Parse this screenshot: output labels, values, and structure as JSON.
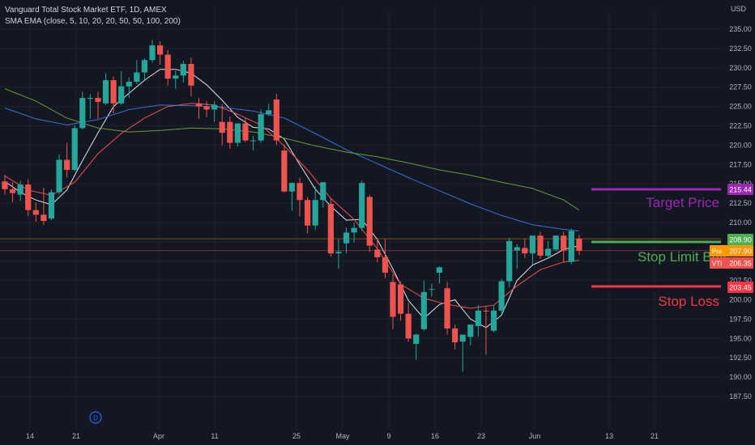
{
  "header": {
    "title": "Vanguard Total Stock Market ETF, 1D, AMEX",
    "indicator": "SMA EMA (close, 5, 10, 20, 20, 50, 50, 100, 200)",
    "currency": "USD"
  },
  "colors": {
    "background": "#131722",
    "up": "#26a69a",
    "down": "#ef5350",
    "grid": "#1e222d",
    "axis_text": "#b2b5be",
    "ma_white": "#e0e3eb",
    "ma_red": "#f04f4f",
    "ma_blue": "#3a6fd8",
    "ma_green": "#6b9a3a",
    "target": "#9c27b0",
    "stop_limit": "#4caf50",
    "stop_loss": "#f23645",
    "pre_tag": "#ff9800"
  },
  "annotations": {
    "target_label": "Target Price",
    "stop_limit_label": "Stop Limit Buy",
    "stop_loss_label": "Stop Loss",
    "target_price": "215.44",
    "stop_limit_price": "208.90",
    "pre_price": "207.90",
    "pre_tag": "Pre",
    "last_price": "206.35",
    "last_tag": "VTI",
    "stop_loss_price": "203.45",
    "event_marker": "D"
  },
  "chart_data": {
    "type": "candlestick",
    "title": "Vanguard Total Stock Market ETF, 1D, AMEX",
    "ylim": [
      186.5,
      237
    ],
    "y_ticks": [
      "235.00",
      "232.50",
      "230.00",
      "227.50",
      "225.00",
      "222.50",
      "220.00",
      "217.50",
      "215.00",
      "212.50",
      "210.00",
      "207.50",
      "205.00",
      "202.50",
      "200.00",
      "197.50",
      "195.00",
      "192.50",
      "190.00",
      "187.50"
    ],
    "x_ticks": [
      "14",
      "21",
      "Apr",
      "11",
      "25",
      "May",
      "9",
      "16",
      "23",
      "Jun",
      "13",
      "21"
    ],
    "candles": [
      {
        "o": 215.3,
        "h": 216.2,
        "l": 213.6,
        "c": 214.3
      },
      {
        "o": 214.3,
        "h": 215.2,
        "l": 212.6,
        "c": 213.8
      },
      {
        "o": 213.6,
        "h": 215.4,
        "l": 212.8,
        "c": 214.9
      },
      {
        "o": 214.9,
        "h": 215.6,
        "l": 210.8,
        "c": 211.6
      },
      {
        "o": 211.6,
        "h": 212.6,
        "l": 210.1,
        "c": 211.0
      },
      {
        "o": 211.0,
        "h": 214.5,
        "l": 209.7,
        "c": 210.2
      },
      {
        "o": 210.5,
        "h": 214.3,
        "l": 210.3,
        "c": 213.9
      },
      {
        "o": 213.9,
        "h": 218.8,
        "l": 213.6,
        "c": 218.1
      },
      {
        "o": 218.1,
        "h": 220.3,
        "l": 215.8,
        "c": 216.8
      },
      {
        "o": 216.8,
        "h": 222.6,
        "l": 216.6,
        "c": 222.2
      },
      {
        "o": 222.2,
        "h": 226.9,
        "l": 222.0,
        "c": 226.1
      },
      {
        "o": 226.1,
        "h": 226.6,
        "l": 223.4,
        "c": 226.1
      },
      {
        "o": 226.1,
        "h": 226.9,
        "l": 223.4,
        "c": 225.6
      },
      {
        "o": 225.4,
        "h": 229.3,
        "l": 225.2,
        "c": 228.4
      },
      {
        "o": 228.4,
        "h": 228.9,
        "l": 224.1,
        "c": 225.4
      },
      {
        "o": 225.4,
        "h": 229.6,
        "l": 225.2,
        "c": 227.6
      },
      {
        "o": 227.6,
        "h": 228.8,
        "l": 226.1,
        "c": 228.2
      },
      {
        "o": 228.2,
        "h": 231.0,
        "l": 227.9,
        "c": 229.4
      },
      {
        "o": 229.4,
        "h": 231.2,
        "l": 228.5,
        "c": 231.0
      },
      {
        "o": 231.0,
        "h": 233.6,
        "l": 230.7,
        "c": 232.9
      },
      {
        "o": 232.9,
        "h": 233.4,
        "l": 230.4,
        "c": 231.7
      },
      {
        "o": 231.7,
        "h": 232.3,
        "l": 227.7,
        "c": 228.6
      },
      {
        "o": 228.6,
        "h": 229.6,
        "l": 227.3,
        "c": 229.0
      },
      {
        "o": 229.0,
        "h": 230.9,
        "l": 228.1,
        "c": 230.5
      },
      {
        "o": 230.5,
        "h": 231.3,
        "l": 226.3,
        "c": 227.7
      },
      {
        "o": 225.4,
        "h": 226.1,
        "l": 223.4,
        "c": 225.0
      },
      {
        "o": 225.0,
        "h": 225.7,
        "l": 223.6,
        "c": 224.6
      },
      {
        "o": 224.6,
        "h": 225.7,
        "l": 223.0,
        "c": 225.2
      },
      {
        "o": 223.0,
        "h": 225.3,
        "l": 220.0,
        "c": 221.6
      },
      {
        "o": 223.0,
        "h": 223.7,
        "l": 219.5,
        "c": 220.3
      },
      {
        "o": 220.3,
        "h": 222.8,
        "l": 219.8,
        "c": 222.8
      },
      {
        "o": 222.8,
        "h": 223.5,
        "l": 220.4,
        "c": 220.6
      },
      {
        "o": 220.6,
        "h": 221.2,
        "l": 219.3,
        "c": 220.6
      },
      {
        "o": 220.6,
        "h": 224.6,
        "l": 220.3,
        "c": 224.0
      },
      {
        "o": 224.0,
        "h": 225.4,
        "l": 223.8,
        "c": 224.5
      },
      {
        "o": 225.9,
        "h": 226.6,
        "l": 220.0,
        "c": 220.6
      },
      {
        "o": 219.3,
        "h": 220.1,
        "l": 213.9,
        "c": 214.0
      },
      {
        "o": 214.0,
        "h": 215.2,
        "l": 211.5,
        "c": 215.1
      },
      {
        "o": 215.1,
        "h": 215.8,
        "l": 210.8,
        "c": 212.9
      },
      {
        "o": 212.9,
        "h": 213.3,
        "l": 208.6,
        "c": 209.6
      },
      {
        "o": 209.6,
        "h": 214.7,
        "l": 209.0,
        "c": 212.9
      },
      {
        "o": 212.9,
        "h": 215.2,
        "l": 211.9,
        "c": 215.2
      },
      {
        "o": 212.4,
        "h": 213.1,
        "l": 205.6,
        "c": 206.0
      },
      {
        "o": 206.0,
        "h": 207.8,
        "l": 204.0,
        "c": 206.2
      },
      {
        "o": 207.3,
        "h": 209.3,
        "l": 206.0,
        "c": 208.7
      },
      {
        "o": 208.7,
        "h": 210.0,
        "l": 207.4,
        "c": 209.3
      },
      {
        "o": 209.3,
        "h": 215.4,
        "l": 208.9,
        "c": 215.1
      },
      {
        "o": 213.3,
        "h": 213.6,
        "l": 206.2,
        "c": 207.0
      },
      {
        "o": 206.5,
        "h": 208.0,
        "l": 204.8,
        "c": 205.5
      },
      {
        "o": 205.5,
        "h": 207.9,
        "l": 202.8,
        "c": 203.5
      },
      {
        "o": 202.3,
        "h": 203.3,
        "l": 196.2,
        "c": 197.8
      },
      {
        "o": 202.0,
        "h": 202.4,
        "l": 197.3,
        "c": 198.2
      },
      {
        "o": 198.2,
        "h": 199.6,
        "l": 194.6,
        "c": 195.0
      },
      {
        "o": 194.3,
        "h": 195.6,
        "l": 192.2,
        "c": 195.5
      },
      {
        "o": 196.2,
        "h": 202.5,
        "l": 196.0,
        "c": 201.0
      },
      {
        "o": 201.4,
        "h": 202.1,
        "l": 200.4,
        "c": 201.4
      },
      {
        "o": 203.5,
        "h": 204.3,
        "l": 202.1,
        "c": 204.2
      },
      {
        "o": 201.5,
        "h": 202.3,
        "l": 195.5,
        "c": 196.3
      },
      {
        "o": 196.3,
        "h": 196.8,
        "l": 193.6,
        "c": 194.5
      },
      {
        "o": 194.6,
        "h": 195.4,
        "l": 190.7,
        "c": 195.5
      },
      {
        "o": 195.2,
        "h": 196.8,
        "l": 194.1,
        "c": 196.8
      },
      {
        "o": 196.6,
        "h": 199.3,
        "l": 195.2,
        "c": 198.6
      },
      {
        "o": 198.6,
        "h": 199.1,
        "l": 192.9,
        "c": 198.5
      },
      {
        "o": 196.0,
        "h": 199.3,
        "l": 195.8,
        "c": 198.6
      },
      {
        "o": 198.6,
        "h": 202.7,
        "l": 198.3,
        "c": 202.4
      },
      {
        "o": 202.4,
        "h": 208.0,
        "l": 201.6,
        "c": 207.6
      },
      {
        "o": 206.4,
        "h": 207.2,
        "l": 204.0,
        "c": 206.8
      },
      {
        "o": 206.7,
        "h": 207.9,
        "l": 205.4,
        "c": 206.0
      },
      {
        "o": 206.0,
        "h": 208.3,
        "l": 204.6,
        "c": 208.3
      },
      {
        "o": 208.3,
        "h": 208.8,
        "l": 205.3,
        "c": 205.7
      },
      {
        "o": 205.7,
        "h": 207.6,
        "l": 205.3,
        "c": 206.6
      },
      {
        "o": 206.5,
        "h": 208.3,
        "l": 206.3,
        "c": 208.3
      },
      {
        "o": 208.3,
        "h": 208.8,
        "l": 204.8,
        "c": 206.4
      },
      {
        "o": 204.9,
        "h": 209.2,
        "l": 204.6,
        "c": 208.9
      },
      {
        "o": 207.9,
        "h": 208.4,
        "l": 205.8,
        "c": 206.35
      }
    ],
    "ma_lines": [
      {
        "color_key": "ma_white",
        "pts": [
          [
            0,
            215.3
          ],
          [
            2,
            213.9
          ],
          [
            4,
            212.9
          ],
          [
            6,
            212.3
          ],
          [
            8,
            214.2
          ],
          [
            10,
            218.0
          ],
          [
            12,
            221.6
          ],
          [
            14,
            225.0
          ],
          [
            16,
            226.7
          ],
          [
            18,
            228.4
          ],
          [
            20,
            229.8
          ],
          [
            22,
            229.8
          ],
          [
            24,
            229.3
          ],
          [
            26,
            227.8
          ],
          [
            28,
            225.8
          ],
          [
            30,
            223.6
          ],
          [
            32,
            222.3
          ],
          [
            34,
            222.1
          ],
          [
            36,
            220.8
          ],
          [
            38,
            217.5
          ],
          [
            40,
            214.3
          ],
          [
            42,
            212.1
          ],
          [
            44,
            210.3
          ],
          [
            46,
            210.4
          ],
          [
            48,
            207.8
          ],
          [
            50,
            204.0
          ],
          [
            52,
            199.9
          ],
          [
            54,
            197.6
          ],
          [
            56,
            199.4
          ],
          [
            58,
            200.0
          ],
          [
            60,
            197.5
          ],
          [
            62,
            196.4
          ],
          [
            64,
            198.0
          ],
          [
            66,
            202.5
          ],
          [
            68,
            204.5
          ],
          [
            70,
            205.4
          ],
          [
            72,
            206.5
          ],
          [
            74,
            207.0
          ]
        ]
      },
      {
        "color_key": "ma_red",
        "pts": [
          [
            0,
            216.0
          ],
          [
            3,
            214.2
          ],
          [
            6,
            213.5
          ],
          [
            9,
            215.2
          ],
          [
            12,
            218.9
          ],
          [
            15,
            221.5
          ],
          [
            18,
            223.5
          ],
          [
            21,
            225.0
          ],
          [
            24,
            225.4
          ],
          [
            27,
            225.2
          ],
          [
            30,
            224.0
          ],
          [
            33,
            222.6
          ],
          [
            36,
            219.9
          ],
          [
            39,
            216.8
          ],
          [
            42,
            213.1
          ],
          [
            45,
            210.4
          ],
          [
            48,
            206.6
          ],
          [
            51,
            202.0
          ],
          [
            54,
            200.2
          ],
          [
            57,
            199.4
          ],
          [
            60,
            198.9
          ],
          [
            63,
            199.3
          ],
          [
            66,
            201.8
          ],
          [
            69,
            203.9
          ],
          [
            72,
            204.9
          ],
          [
            74,
            205.1
          ]
        ]
      },
      {
        "color_key": "ma_blue",
        "pts": [
          [
            0,
            224.8
          ],
          [
            4,
            223.4
          ],
          [
            8,
            222.6
          ],
          [
            12,
            223.3
          ],
          [
            16,
            224.6
          ],
          [
            20,
            225.2
          ],
          [
            24,
            225.1
          ],
          [
            28,
            224.9
          ],
          [
            32,
            224.4
          ],
          [
            36,
            223.5
          ],
          [
            40,
            221.5
          ],
          [
            44,
            219.4
          ],
          [
            48,
            217.6
          ],
          [
            52,
            215.8
          ],
          [
            56,
            214.1
          ],
          [
            60,
            212.4
          ],
          [
            64,
            210.9
          ],
          [
            68,
            209.7
          ],
          [
            72,
            209.1
          ],
          [
            74,
            208.9
          ]
        ]
      },
      {
        "color_key": "ma_green",
        "pts": [
          [
            0,
            227.3
          ],
          [
            4,
            225.7
          ],
          [
            8,
            223.5
          ],
          [
            12,
            222.2
          ],
          [
            16,
            221.7
          ],
          [
            20,
            221.9
          ],
          [
            24,
            222.2
          ],
          [
            28,
            222.1
          ],
          [
            32,
            221.7
          ],
          [
            36,
            220.9
          ],
          [
            40,
            219.9
          ],
          [
            44,
            219.1
          ],
          [
            48,
            218.5
          ],
          [
            52,
            217.7
          ],
          [
            56,
            216.8
          ],
          [
            60,
            216.1
          ],
          [
            64,
            215.2
          ],
          [
            68,
            214.4
          ],
          [
            72,
            212.9
          ],
          [
            74,
            211.6
          ]
        ]
      }
    ]
  }
}
